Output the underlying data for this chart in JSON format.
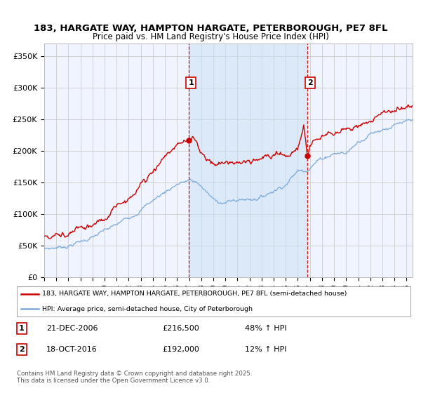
{
  "title_line1": "183, HARGATE WAY, HAMPTON HARGATE, PETERBOROUGH, PE7 8FL",
  "title_line2": "Price paid vs. HM Land Registry's House Price Index (HPI)",
  "legend_label1": "183, HARGATE WAY, HAMPTON HARGATE, PETERBOROUGH, PE7 8FL (semi-detached house)",
  "legend_label2": "HPI: Average price, semi-detached house, City of Peterborough",
  "annotation1_label": "1",
  "annotation1_date": "21-DEC-2006",
  "annotation1_price": "£216,500",
  "annotation1_hpi": "48% ↑ HPI",
  "annotation2_label": "2",
  "annotation2_date": "18-OCT-2016",
  "annotation2_price": "£192,000",
  "annotation2_hpi": "12% ↑ HPI",
  "footer": "Contains HM Land Registry data © Crown copyright and database right 2025.\nThis data is licensed under the Open Government Licence v3.0.",
  "red_color": "#cc0000",
  "blue_color": "#7aaadd",
  "vline_color": "#cc0000",
  "shade_color": "#ddeeff",
  "background_color": "#f0f4ff",
  "grid_color": "#cccccc",
  "ylim": [
    0,
    370000
  ],
  "yticks": [
    0,
    50000,
    100000,
    150000,
    200000,
    250000,
    300000,
    350000
  ],
  "sale1_year": 2006.97,
  "sale1_price": 216500,
  "sale2_year": 2016.8,
  "sale2_price": 192000,
  "xmin": 1995,
  "xmax": 2025.5
}
